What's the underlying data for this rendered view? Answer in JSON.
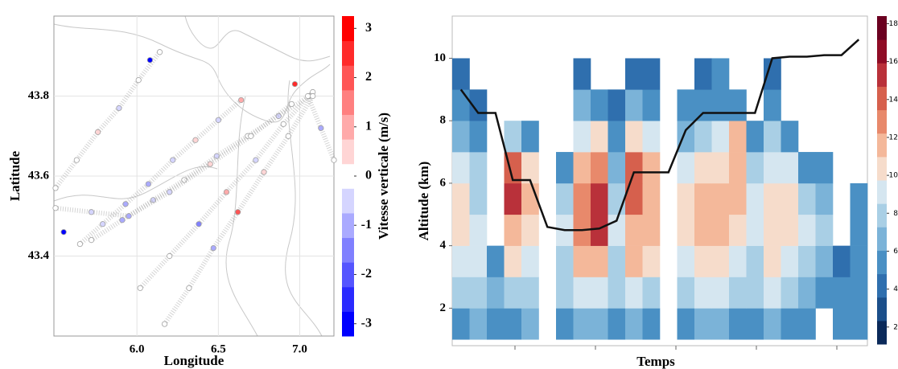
{
  "chart_data": [
    {
      "type": "scatter",
      "xlabel": "Longitude",
      "ylabel": "Latitude",
      "xlim": [
        5.49,
        7.21
      ],
      "ylim": [
        43.2,
        44.0
      ],
      "xticks": [
        {
          "value": 6,
          "label": "6.0"
        },
        6.5,
        {
          "value": 7,
          "label": "7.0"
        }
      ],
      "yticks": [
        43.4,
        43.6,
        43.8
      ],
      "grid": true,
      "track_color": "#a0a0a0",
      "series": [
        {
          "x": [
            5.65,
            5.79,
            5.93,
            6.07,
            6.22,
            6.36,
            6.5,
            6.64
          ],
          "y": [
            43.43,
            43.48,
            43.53,
            43.58,
            43.64,
            43.69,
            43.74,
            43.79
          ],
          "values": [
            0,
            -0.5,
            -1,
            -0.8,
            -0.3,
            0.5,
            -0.6,
            1
          ]
        },
        {
          "x": [
            5.72,
            5.91,
            6.1,
            6.29,
            6.49,
            6.68,
            6.87,
            7.06
          ],
          "y": [
            43.44,
            43.49,
            43.54,
            43.59,
            43.65,
            43.7,
            43.75,
            43.8
          ],
          "values": [
            0,
            -1.2,
            -0.5,
            0,
            -0.4,
            0.2,
            -0.3,
            0
          ]
        },
        {
          "x": [
            5.5,
            5.72,
            5.95,
            6.2,
            6.45,
            6.7,
            6.95
          ],
          "y": [
            43.52,
            43.51,
            43.5,
            43.56,
            43.63,
            43.7,
            43.78
          ],
          "values": [
            0,
            -0.5,
            -1,
            -0.7,
            0.3,
            0,
            0
          ]
        },
        {
          "x": [
            5.5,
            5.63,
            5.76,
            5.89,
            6.01,
            6.14
          ],
          "y": [
            43.57,
            43.64,
            43.71,
            43.77,
            43.84,
            43.91
          ],
          "values": [
            0,
            0,
            0.6,
            -0.4,
            0,
            0
          ]
        },
        {
          "x": [
            6.02,
            6.2,
            6.38,
            6.55,
            6.73,
            6.9,
            7.08
          ],
          "y": [
            43.32,
            43.4,
            43.48,
            43.56,
            43.64,
            43.73,
            43.81
          ],
          "values": [
            0,
            0,
            -1.5,
            1.2,
            -0.5,
            0,
            0
          ]
        },
        {
          "x": [
            6.17,
            6.32,
            6.47,
            6.62,
            6.78,
            6.93,
            7.08
          ],
          "y": [
            43.23,
            43.32,
            43.42,
            43.51,
            43.61,
            43.7,
            43.8
          ],
          "values": [
            0,
            0,
            -0.8,
            1.8,
            0.5,
            0,
            0
          ]
        },
        {
          "x": [
            7.05,
            7.13,
            7.21
          ],
          "y": [
            43.8,
            43.72,
            43.64
          ],
          "values": [
            0,
            -0.8,
            0
          ]
        }
      ],
      "markers": {
        "x": [
          6.08,
          5.55,
          6.97
        ],
        "y": [
          43.89,
          43.46,
          43.83
        ],
        "values": [
          -3,
          -3,
          2.5
        ]
      },
      "colorbar": {
        "label": "Vitesse verticale (m/s)",
        "lim": [
          -3.25,
          3.25
        ],
        "ticks": [
          -3,
          -2,
          -1,
          0,
          1,
          2,
          3
        ],
        "colors": [
          "#0000ff",
          "#2a2aff",
          "#5555ff",
          "#8080ff",
          "#aaaaff",
          "#d5d5ff",
          "#ffffff",
          "#ffd5d5",
          "#ffaaaa",
          "#ff8080",
          "#ff5555",
          "#ff2a2a",
          "#ff0000"
        ]
      }
    },
    {
      "type": "heatmap",
      "xlabel": "Temps",
      "ylabel": "Altitude (km)",
      "ylim": [
        0.8,
        11.35
      ],
      "yticks": [
        2,
        4,
        6,
        8,
        10
      ],
      "categories": [
        null,
        null,
        null,
        null,
        null,
        null,
        null,
        null,
        null,
        null,
        null,
        null,
        null,
        null,
        null,
        null,
        null,
        null,
        null,
        null,
        null,
        null,
        null,
        null
      ],
      "y": [
        1.5,
        2.5,
        3.5,
        4.5,
        5.5,
        6.5,
        7.5,
        8.5,
        9.5
      ],
      "z": [
        [
          6,
          7,
          6,
          6,
          7,
          null,
          6,
          7,
          7,
          6,
          7,
          6,
          null,
          6,
          7,
          7,
          6,
          6,
          7,
          6,
          6,
          null,
          5,
          6
        ],
        [
          8,
          8,
          7,
          8,
          8,
          null,
          8,
          9,
          9,
          8,
          9,
          8,
          null,
          8,
          9,
          9,
          8,
          8,
          9,
          8,
          7,
          6,
          5,
          5
        ],
        [
          9,
          9,
          6,
          10,
          9,
          null,
          8,
          11,
          12,
          8,
          11,
          10,
          null,
          9,
          10,
          10,
          9,
          8,
          10,
          9,
          8,
          7,
          4,
          6
        ],
        [
          10,
          9,
          null,
          12,
          10,
          null,
          9,
          13,
          15,
          9,
          12,
          11,
          null,
          10,
          11,
          11,
          10,
          9,
          10,
          10,
          9,
          8,
          null,
          5
        ],
        [
          10,
          8,
          null,
          15,
          11,
          null,
          8,
          13,
          15,
          8,
          14,
          12,
          null,
          10,
          11,
          11,
          11,
          9,
          10,
          10,
          8,
          7,
          null,
          5
        ],
        [
          9,
          8,
          null,
          14,
          10,
          null,
          6,
          12,
          13,
          7,
          14,
          11,
          null,
          9,
          10,
          10,
          12,
          8,
          9,
          9,
          6,
          6,
          null,
          null
        ],
        [
          7,
          6,
          null,
          8,
          6,
          null,
          null,
          9,
          10,
          6,
          10,
          9,
          null,
          7,
          8,
          9,
          12,
          6,
          8,
          6,
          null,
          null,
          null,
          null
        ],
        [
          5,
          4,
          null,
          null,
          null,
          null,
          null,
          7,
          6,
          4,
          7,
          6,
          null,
          5,
          6,
          6,
          5,
          null,
          6,
          null,
          null,
          null,
          null,
          null
        ],
        [
          4,
          null,
          null,
          null,
          null,
          null,
          null,
          4,
          null,
          null,
          4,
          4,
          null,
          null,
          4,
          5,
          null,
          null,
          4,
          null,
          null,
          null,
          null,
          null
        ]
      ],
      "series": [
        {
          "color": "#111111",
          "values": [
            9.0,
            8.25,
            8.25,
            6.1,
            6.1,
            4.6,
            4.5,
            4.5,
            4.55,
            4.8,
            6.35,
            6.35,
            6.35,
            7.7,
            8.25,
            8.25,
            8.25,
            8.25,
            10.0,
            10.05,
            10.05,
            10.1,
            10.1,
            10.6
          ]
        }
      ],
      "colorbar": {
        "lim": [
          1.1,
          18.4
        ],
        "ticks": [
          2,
          4,
          6,
          8,
          10,
          12,
          14,
          16,
          18
        ],
        "colors": [
          "#0b2a5a",
          "#1b4f8a",
          "#2f6fae",
          "#4a90c4",
          "#7bb3d8",
          "#a9cfe5",
          "#d5e6f0",
          "#f6dccb",
          "#f4b89a",
          "#e8896b",
          "#d6604d",
          "#b9313a",
          "#8f0c25",
          "#6b0020"
        ]
      }
    }
  ]
}
